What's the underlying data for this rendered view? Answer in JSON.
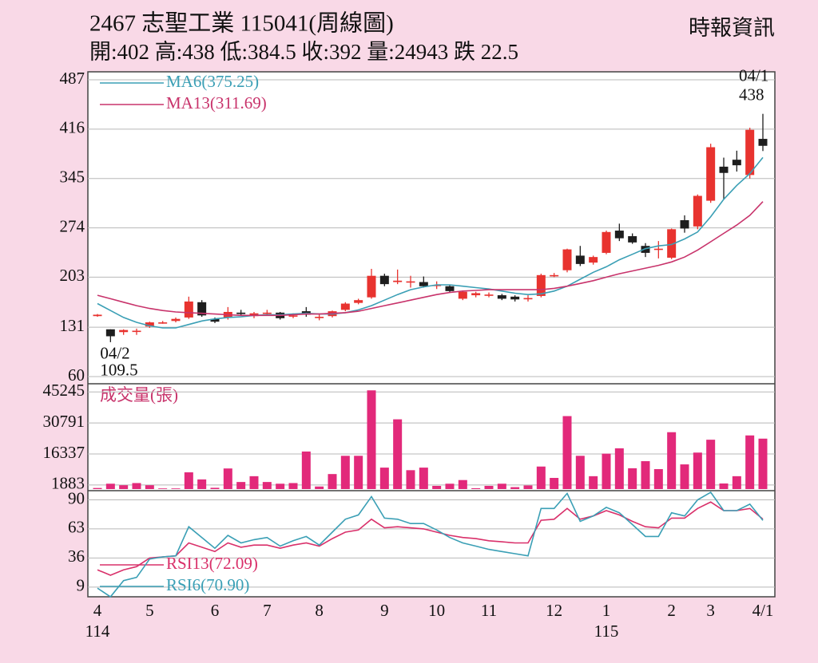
{
  "chart_data": [
    {
      "type": "candlestick",
      "title": "2467  志聖工業 115041(周線圖)",
      "subtitle": "開:402 高:438 低:384.5 收:392 量:24943 跌 22.5",
      "source": "時報資訊",
      "categories": [
        "4",
        null,
        null,
        null,
        "5",
        null,
        null,
        null,
        null,
        "6",
        null,
        null,
        null,
        "7",
        null,
        null,
        null,
        "8",
        null,
        null,
        null,
        null,
        "9",
        null,
        null,
        null,
        "10",
        null,
        null,
        null,
        "11",
        null,
        null,
        null,
        null,
        "12",
        null,
        null,
        null,
        "1",
        null,
        null,
        null,
        null,
        "2",
        null,
        null,
        "3",
        null,
        null,
        null,
        "4/1"
      ],
      "sublabels": [
        "114",
        null,
        null,
        null,
        null,
        null,
        null,
        null,
        null,
        null,
        null,
        null,
        null,
        null,
        null,
        null,
        null,
        null,
        null,
        null,
        null,
        null,
        null,
        null,
        null,
        null,
        null,
        null,
        null,
        null,
        null,
        null,
        null,
        null,
        null,
        null,
        null,
        null,
        null,
        "115",
        null,
        null,
        null,
        null,
        null,
        null,
        null,
        null,
        null,
        null,
        null,
        null
      ],
      "open": [
        147,
        128,
        124,
        126,
        132,
        138,
        140,
        145,
        167,
        143,
        145,
        152,
        147,
        152,
        152,
        148,
        154,
        146,
        147,
        156,
        166,
        174,
        205,
        196,
        197,
        196,
        192,
        190,
        172,
        177,
        178,
        177,
        175,
        173,
        176,
        205,
        213,
        234,
        224,
        238,
        270,
        262,
        248,
        244,
        231,
        285,
        276,
        313,
        362,
        372,
        350,
        402
      ],
      "high": [
        150,
        128,
        128,
        129,
        139,
        140,
        145,
        175,
        170,
        145,
        160,
        156,
        153,
        156,
        153,
        151,
        160,
        149,
        155,
        167,
        172,
        215,
        208,
        214,
        205,
        204,
        197,
        192,
        184,
        182,
        181,
        179,
        177,
        177,
        208,
        209,
        244,
        248,
        234,
        270,
        280,
        266,
        252,
        255,
        273,
        292,
        322,
        395,
        375,
        385,
        418,
        438
      ],
      "low": [
        146,
        109.5,
        120,
        120,
        130,
        136,
        138,
        143,
        146,
        137,
        142,
        148,
        144,
        148,
        142,
        144,
        146,
        141,
        145,
        154,
        164,
        172,
        190,
        193,
        188,
        188,
        186,
        181,
        170,
        174,
        174,
        170,
        168,
        168,
        174,
        203,
        210,
        219,
        221,
        236,
        255,
        251,
        232,
        230,
        229,
        267,
        272,
        310,
        315,
        355,
        345,
        384.5
      ],
      "close": [
        149,
        118,
        127,
        126,
        138,
        138,
        143,
        168,
        148,
        139,
        153,
        150,
        151,
        152,
        144,
        148,
        149,
        146,
        154,
        165,
        170,
        205,
        193,
        198,
        197,
        190,
        192,
        183,
        182,
        180,
        178,
        172,
        171,
        173,
        206,
        206,
        243,
        222,
        232,
        268,
        259,
        253,
        238,
        244,
        272,
        273,
        320,
        390,
        353,
        364,
        415,
        392
      ],
      "up_color": "#e8332f",
      "down_color": "#1e1e1e",
      "series": [
        {
          "name": "MA6(375.25)",
          "color": "#3a9fb5",
          "values": [
            165,
            155,
            145,
            138,
            133,
            130,
            130,
            135,
            140,
            143,
            145,
            146,
            148,
            149,
            149,
            150,
            151,
            150,
            150,
            152,
            156,
            162,
            170,
            178,
            185,
            189,
            192,
            192,
            190,
            188,
            186,
            183,
            180,
            178,
            179,
            183,
            190,
            200,
            210,
            218,
            228,
            236,
            244,
            248,
            250,
            258,
            268,
            290,
            315,
            335,
            352,
            375.25
          ]
        },
        {
          "name": "MA13(311.69)",
          "color": "#c8336b",
          "values": [
            177,
            172,
            167,
            162,
            158,
            155,
            153,
            152,
            151,
            150,
            149,
            148,
            148,
            148,
            148,
            149,
            150,
            150,
            151,
            152,
            154,
            158,
            162,
            166,
            170,
            174,
            178,
            181,
            183,
            184,
            185,
            185,
            185,
            185,
            185,
            187,
            190,
            194,
            198,
            203,
            208,
            212,
            216,
            220,
            225,
            232,
            242,
            254,
            266,
            278,
            292,
            311.69
          ]
        }
      ],
      "annotations": [
        {
          "date": "04/2",
          "value": 109.5
        },
        {
          "date": "04/1",
          "value": 438
        }
      ],
      "ylim": [
        60,
        487
      ],
      "yticks": [
        60,
        131,
        203,
        274,
        345,
        416,
        487
      ],
      "grid": true
    },
    {
      "type": "bar",
      "title": "成交量(張)",
      "values": [
        500,
        2500,
        1800,
        2800,
        1800,
        300,
        300,
        7800,
        4500,
        600,
        9600,
        3300,
        6000,
        3300,
        2500,
        2800,
        17500,
        1200,
        7000,
        15500,
        15500,
        46000,
        10000,
        32500,
        8800,
        10000,
        1500,
        2500,
        4200,
        400,
        1500,
        2500,
        900,
        1700,
        10500,
        5200,
        34000,
        15500,
        6000,
        16500,
        19000,
        9700,
        13000,
        9300,
        26500,
        11500,
        17000,
        23000,
        2600,
        6000,
        25000,
        23500
      ],
      "color": "#e2297a",
      "ylim": [
        0,
        48700
      ],
      "yticks": [
        1883,
        16337,
        30791,
        45245
      ],
      "grid": true
    },
    {
      "type": "line",
      "series": [
        {
          "name": "RSI13(72.09)",
          "color": "#d9306a",
          "values": [
            25,
            20,
            25,
            28,
            36,
            37,
            38,
            50,
            46,
            42,
            50,
            46,
            48,
            48,
            45,
            48,
            50,
            47,
            54,
            60,
            62,
            72,
            64,
            65,
            64,
            63,
            60,
            57,
            55,
            54,
            52,
            51,
            50,
            50,
            71,
            72,
            82,
            72,
            75,
            80,
            76,
            70,
            65,
            64,
            73,
            73,
            82,
            88,
            80,
            80,
            82,
            72.09
          ]
        },
        {
          "name": "RSI6(70.90)",
          "color": "#3a9fb5",
          "values": [
            8,
            0,
            15,
            18,
            35,
            37,
            38,
            65,
            55,
            45,
            57,
            50,
            53,
            55,
            47,
            52,
            56,
            48,
            60,
            72,
            76,
            93,
            73,
            72,
            68,
            68,
            62,
            55,
            50,
            47,
            44,
            42,
            40,
            38,
            82,
            82,
            96,
            70,
            75,
            83,
            78,
            67,
            56,
            56,
            78,
            75,
            90,
            97,
            80,
            80,
            86,
            70.9
          ]
        }
      ],
      "ylim": [
        0,
        97
      ],
      "yticks": [
        9,
        36,
        63,
        90
      ],
      "grid": true
    }
  ]
}
